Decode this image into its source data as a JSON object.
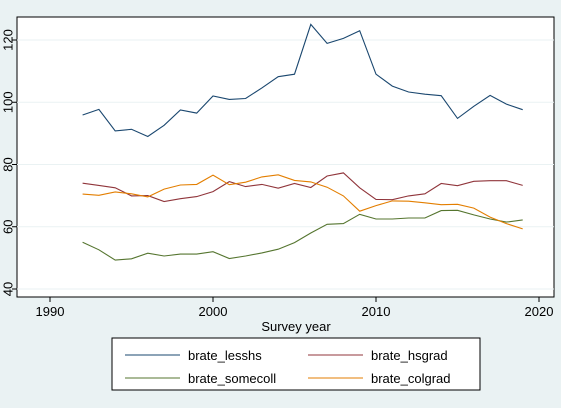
{
  "chart_data": {
    "type": "line",
    "title": "",
    "xlabel": "Survey year",
    "ylabel": "",
    "xlim": [
      1990,
      2020
    ],
    "ylim": [
      40,
      125
    ],
    "xticks": [
      1990,
      2000,
      2010,
      2020
    ],
    "yticks": [
      40,
      60,
      80,
      100,
      120
    ],
    "grid": "horizontal",
    "legend_position": "bottom",
    "x": [
      1992,
      1993,
      1994,
      1995,
      1996,
      1997,
      1998,
      1999,
      2000,
      2001,
      2002,
      2003,
      2004,
      2005,
      2006,
      2007,
      2008,
      2009,
      2010,
      2011,
      2012,
      2013,
      2014,
      2015,
      2016,
      2017,
      2018,
      2019
    ],
    "series": [
      {
        "name": "brate_lesshs",
        "color": "#1a476f",
        "values": [
          95.9,
          97.7,
          90.8,
          91.3,
          89.0,
          92.6,
          97.5,
          96.5,
          102.0,
          100.9,
          101.2,
          104.6,
          108.2,
          109.0,
          125.0,
          118.9,
          120.5,
          123.0,
          109.0,
          105.2,
          103.3,
          102.6,
          102.1,
          94.8,
          98.7,
          102.2,
          99.4,
          97.6
        ]
      },
      {
        "name": "brate_hsgrad",
        "color": "#90353b",
        "values": [
          74.0,
          73.3,
          72.5,
          69.9,
          70.0,
          68.1,
          69.0,
          69.7,
          71.3,
          74.5,
          72.9,
          73.6,
          72.4,
          73.9,
          72.6,
          76.3,
          77.3,
          72.5,
          68.8,
          68.7,
          69.9,
          70.6,
          73.9,
          73.2,
          74.6,
          74.8,
          74.8,
          73.3
        ]
      },
      {
        "name": "brate_somecoll",
        "color": "#55752f",
        "values": [
          55.0,
          52.6,
          49.3,
          49.7,
          51.5,
          50.6,
          51.2,
          51.2,
          52.0,
          49.8,
          50.6,
          51.6,
          52.8,
          54.9,
          58.0,
          60.8,
          61.0,
          64.0,
          62.5,
          62.5,
          62.8,
          62.8,
          65.2,
          65.3,
          63.8,
          62.5,
          61.5,
          62.2
        ]
      },
      {
        "name": "brate_colgrad",
        "color": "#e37e00",
        "values": [
          70.5,
          70.1,
          71.2,
          70.6,
          69.6,
          72.1,
          73.4,
          73.6,
          76.6,
          73.5,
          74.3,
          76.0,
          76.7,
          74.9,
          74.4,
          72.7,
          69.9,
          65.0,
          66.8,
          68.3,
          68.2,
          67.7,
          67.1,
          67.2,
          66.0,
          63.1,
          61.0,
          59.3
        ]
      }
    ]
  }
}
